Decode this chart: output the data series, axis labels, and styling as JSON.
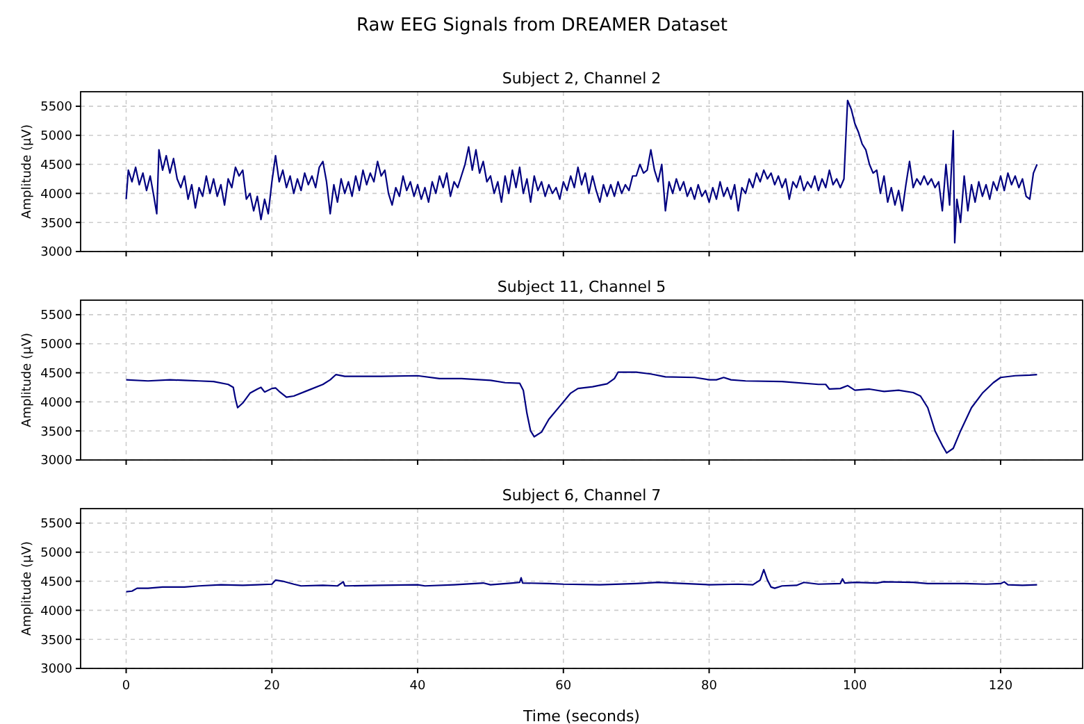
{
  "chart_data": [
    {
      "type": "line",
      "title": "Subject 2, Channel 2",
      "ylabel": "Amplitude (µV)",
      "annotations": [
        "Raw EEG Signals from DREAMER Dataset"
      ],
      "xlim": [
        -6.25,
        131.25
      ],
      "xticks": [
        0,
        20,
        40,
        60,
        80,
        100,
        120
      ],
      "ylim": [
        3000,
        5750
      ],
      "yticks": [
        3000,
        3500,
        4000,
        4500,
        5000,
        5500
      ],
      "grid": true,
      "tick_labels": "y",
      "line_style": "solid",
      "x": [
        0,
        0.3,
        0.8,
        1.3,
        1.8,
        2.3,
        2.8,
        3.3,
        3.8,
        4.2,
        4.5,
        5,
        5.5,
        6,
        6.5,
        7,
        7.5,
        8,
        8.5,
        9,
        9.5,
        10,
        10.5,
        11,
        11.5,
        12,
        12.5,
        13,
        13.5,
        14,
        14.5,
        15,
        15.5,
        16,
        16.5,
        17,
        17.5,
        18,
        18.5,
        19,
        19.5,
        20,
        20.5,
        21,
        21.5,
        22,
        22.5,
        23,
        23.5,
        24,
        24.5,
        25,
        25.5,
        26,
        26.5,
        27,
        27.5,
        28,
        28.5,
        29,
        29.5,
        30,
        30.5,
        31,
        31.5,
        32,
        32.5,
        33,
        33.5,
        34,
        34.5,
        35,
        35.5,
        36,
        36.5,
        37,
        37.5,
        38,
        38.5,
        39,
        39.5,
        40,
        40.5,
        41,
        41.5,
        42,
        42.5,
        43,
        43.5,
        44,
        44.5,
        45,
        45.5,
        46,
        46.5,
        47,
        47.5,
        48,
        48.5,
        49,
        49.5,
        50,
        50.5,
        51,
        51.5,
        52,
        52.5,
        53,
        53.5,
        54,
        54.5,
        55,
        55.5,
        56,
        56.5,
        57,
        57.5,
        58,
        58.5,
        59,
        59.5,
        60,
        60.5,
        61,
        61.5,
        62,
        62.5,
        63,
        63.5,
        64,
        64.5,
        65,
        65.5,
        66,
        66.5,
        67,
        67.5,
        68,
        68.5,
        69,
        69.5,
        70,
        70.5,
        71,
        71.5,
        72,
        72.5,
        73,
        73.5,
        74,
        74.5,
        75,
        75.5,
        76,
        76.5,
        77,
        77.5,
        78,
        78.5,
        79,
        79.5,
        80,
        80.5,
        81,
        81.5,
        82,
        82.5,
        83,
        83.5,
        84,
        84.5,
        85,
        85.5,
        86,
        86.5,
        87,
        87.5,
        88,
        88.5,
        89,
        89.5,
        90,
        90.5,
        91,
        91.5,
        92,
        92.5,
        93,
        93.5,
        94,
        94.5,
        95,
        95.5,
        96,
        96.5,
        97,
        97.5,
        98,
        98.5,
        99,
        99.5,
        100,
        100.5,
        101,
        101.5,
        102,
        102.5,
        103,
        103.5,
        104,
        104.5,
        105,
        105.5,
        106,
        106.5,
        107,
        107.5,
        108,
        108.5,
        109,
        109.5,
        110,
        110.5,
        111,
        111.5,
        112,
        112.5,
        113,
        113.5,
        113.7,
        114,
        114.5,
        115,
        115.5,
        116,
        116.5,
        117,
        117.5,
        118,
        118.5,
        119,
        119.5,
        120,
        120.5,
        121,
        121.5,
        122,
        122.5,
        123,
        123.5,
        124,
        124.5,
        125
      ],
      "series": [
        {
          "color": "#000080",
          "values": [
            3900,
            4400,
            4200,
            4450,
            4150,
            4350,
            4050,
            4300,
            3950,
            3650,
            4750,
            4400,
            4650,
            4350,
            4600,
            4250,
            4100,
            4300,
            3900,
            4150,
            3750,
            4100,
            3950,
            4300,
            4000,
            4250,
            3950,
            4150,
            3800,
            4250,
            4100,
            4450,
            4300,
            4400,
            3900,
            4000,
            3700,
            3950,
            3550,
            3900,
            3650,
            4200,
            4650,
            4200,
            4400,
            4100,
            4300,
            4000,
            4250,
            4050,
            4350,
            4150,
            4300,
            4100,
            4450,
            4550,
            4200,
            3650,
            4150,
            3850,
            4250,
            4000,
            4200,
            3950,
            4300,
            4050,
            4400,
            4150,
            4350,
            4200,
            4550,
            4300,
            4400,
            4000,
            3800,
            4100,
            3950,
            4300,
            4050,
            4200,
            3950,
            4150,
            3900,
            4100,
            3850,
            4200,
            4000,
            4300,
            4100,
            4350,
            3950,
            4200,
            4100,
            4300,
            4500,
            4800,
            4400,
            4750,
            4350,
            4550,
            4200,
            4300,
            4000,
            4200,
            3850,
            4300,
            4000,
            4400,
            4100,
            4450,
            4000,
            4250,
            3850,
            4300,
            4050,
            4200,
            3950,
            4150,
            4000,
            4100,
            3900,
            4200,
            4050,
            4300,
            4100,
            4450,
            4150,
            4350,
            4000,
            4300,
            4050,
            3850,
            4150,
            3950,
            4150,
            3950,
            4200,
            4000,
            4150,
            4050,
            4300,
            4300,
            4500,
            4350,
            4400,
            4750,
            4400,
            4200,
            4500,
            3700,
            4200,
            4000,
            4250,
            4050,
            4200,
            3950,
            4100,
            3900,
            4150,
            3950,
            4050,
            3850,
            4100,
            3900,
            4200,
            3950,
            4100,
            3900,
            4150,
            3700,
            4100,
            4000,
            4250,
            4100,
            4350,
            4200,
            4400,
            4250,
            4350,
            4150,
            4300,
            4100,
            4250,
            3900,
            4200,
            4100,
            4300,
            4050,
            4200,
            4100,
            4300,
            4050,
            4250,
            4100,
            4400,
            4150,
            4250,
            4100,
            4250,
            5600,
            5450,
            5200,
            5050,
            4850,
            4750,
            4500,
            4350,
            4400,
            4000,
            4300,
            3850,
            4100,
            3800,
            4050,
            3700,
            4150,
            4550,
            4100,
            4250,
            4150,
            4300,
            4150,
            4250,
            4100,
            4200,
            3700,
            4500,
            3800,
            5080,
            3150,
            3900,
            3500,
            4300,
            3700,
            4150,
            3850,
            4200,
            3950,
            4150,
            3900,
            4200,
            4050,
            4300,
            4050,
            4350,
            4150,
            4300,
            4100,
            4250,
            3950,
            3900,
            4350,
            4500
          ]
        }
      ]
    },
    {
      "type": "line",
      "title": "Subject 11, Channel 5",
      "ylabel": "Amplitude (µV)",
      "xlim": [
        -6.25,
        131.25
      ],
      "xticks": [
        0,
        20,
        40,
        60,
        80,
        100,
        120
      ],
      "ylim": [
        3000,
        5750
      ],
      "yticks": [
        3000,
        3500,
        4000,
        4500,
        5000,
        5500
      ],
      "grid": true,
      "tick_labels": "y",
      "line_style": "solid",
      "x": [
        0,
        3,
        6,
        8,
        10,
        12,
        14,
        14.7,
        15,
        15.3,
        16,
        17,
        18,
        18.5,
        19,
        20,
        20.5,
        21,
        22,
        23,
        25,
        27,
        28,
        28.8,
        30,
        35,
        40,
        43,
        46,
        50,
        52,
        54,
        54.5,
        55,
        55.5,
        56,
        57,
        58,
        60,
        61,
        62,
        64,
        66,
        67,
        67.5,
        70,
        72,
        74,
        78,
        80,
        81,
        82,
        83,
        85,
        90,
        95,
        96,
        96.5,
        98,
        99,
        100,
        102,
        104,
        106,
        108,
        109,
        110,
        111,
        112,
        112.6,
        113.5,
        114.5,
        116,
        117.5,
        119,
        120,
        122,
        124,
        125
      ],
      "series": [
        {
          "color": "#000080",
          "values": [
            4380,
            4360,
            4380,
            4370,
            4360,
            4350,
            4300,
            4250,
            4050,
            3900,
            3980,
            4150,
            4220,
            4250,
            4170,
            4230,
            4240,
            4180,
            4080,
            4100,
            4200,
            4300,
            4380,
            4470,
            4440,
            4440,
            4450,
            4400,
            4400,
            4370,
            4330,
            4320,
            4200,
            3800,
            3500,
            3400,
            3480,
            3700,
            4000,
            4150,
            4230,
            4260,
            4310,
            4400,
            4510,
            4510,
            4480,
            4430,
            4420,
            4380,
            4380,
            4420,
            4380,
            4360,
            4350,
            4300,
            4300,
            4220,
            4230,
            4280,
            4200,
            4220,
            4180,
            4200,
            4160,
            4100,
            3900,
            3500,
            3250,
            3120,
            3200,
            3500,
            3900,
            4150,
            4330,
            4420,
            4450,
            4460,
            4470
          ]
        }
      ]
    },
    {
      "type": "line",
      "title": "Subject 6, Channel 7",
      "xlabel": "Time (seconds)",
      "ylabel": "Amplitude (µV)",
      "xlim": [
        -6.25,
        131.25
      ],
      "xticks": [
        0,
        20,
        40,
        60,
        80,
        100,
        120
      ],
      "ylim": [
        3000,
        5750
      ],
      "yticks": [
        3000,
        3500,
        4000,
        4500,
        5000,
        5500
      ],
      "grid": true,
      "line_style": "solid",
      "x": [
        0,
        0.8,
        1.5,
        3,
        5,
        8,
        10,
        13,
        16,
        18,
        20,
        20.5,
        21.5,
        23,
        24,
        27,
        29,
        29.8,
        30,
        35,
        40,
        41,
        45,
        49,
        50,
        53,
        54,
        54.2,
        54.4,
        58,
        60,
        65,
        70,
        73,
        75,
        80,
        84,
        86,
        87,
        87.5,
        88,
        88.5,
        89,
        90,
        92,
        93,
        95,
        98,
        98.3,
        98.6,
        100,
        103,
        104,
        108,
        110,
        115,
        118,
        120,
        120.5,
        121,
        123,
        125
      ],
      "series": [
        {
          "color": "#000080",
          "values": [
            4320,
            4330,
            4380,
            4380,
            4400,
            4400,
            4420,
            4440,
            4430,
            4440,
            4450,
            4520,
            4500,
            4450,
            4420,
            4430,
            4420,
            4490,
            4420,
            4430,
            4440,
            4420,
            4440,
            4470,
            4440,
            4470,
            4480,
            4560,
            4470,
            4460,
            4450,
            4440,
            4460,
            4480,
            4470,
            4440,
            4450,
            4440,
            4520,
            4700,
            4520,
            4400,
            4380,
            4420,
            4430,
            4480,
            4450,
            4460,
            4540,
            4470,
            4480,
            4470,
            4490,
            4480,
            4460,
            4460,
            4450,
            4460,
            4490,
            4440,
            4430,
            4440
          ]
        }
      ]
    }
  ]
}
